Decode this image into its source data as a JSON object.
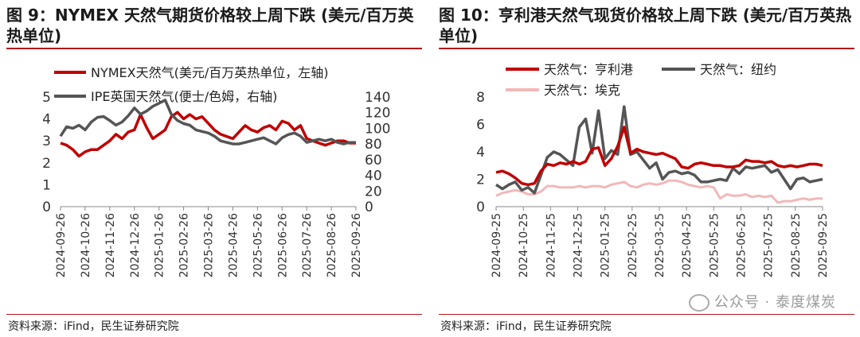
{
  "source_text": "资料来源：iFind，民生证券研究院",
  "watermark": "公众号 · 泰度煤炭",
  "colors": {
    "red": "#c00000",
    "grey": "#555555",
    "pink": "#f2b8b8",
    "accent": "#b4141b"
  },
  "chart_data": [
    {
      "type": "line",
      "title": "图 9：NYMEX 天然气期货价格较上周下跌 (美元/百万英热单位)",
      "x_ticks": [
        "2024-09-26",
        "2024-10-26",
        "2024-11-26",
        "2024-12-26",
        "2025-01-26",
        "2025-02-26",
        "2025-03-26",
        "2025-04-26",
        "2025-05-26",
        "2025-06-26",
        "2025-07-26",
        "2025-08-26",
        "2025-09-26"
      ],
      "ylim_left": [
        0,
        5
      ],
      "yticks_left": [
        "0",
        "1",
        "2",
        "3",
        "4",
        "5"
      ],
      "ylim_right": [
        0,
        140
      ],
      "yticks_right": [
        "0",
        "20",
        "40",
        "60",
        "80",
        "100",
        "120",
        "140"
      ],
      "series": [
        {
          "name": "NYMEX天然气(美元/百万英热单位，左轴)",
          "axis": "left",
          "color": "#c00000",
          "values": [
            2.9,
            2.8,
            2.6,
            2.3,
            2.5,
            2.6,
            2.6,
            2.8,
            3.0,
            3.3,
            3.1,
            3.4,
            3.5,
            4.2,
            3.6,
            3.1,
            3.3,
            3.5,
            4.1,
            4.3,
            4.0,
            4.2,
            4.0,
            4.1,
            3.8,
            3.5,
            3.3,
            3.2,
            3.1,
            3.4,
            3.7,
            3.5,
            3.4,
            3.6,
            3.7,
            3.5,
            3.9,
            3.8,
            3.5,
            3.7,
            3.1,
            3.0,
            2.9,
            2.8,
            2.9,
            3.0,
            3.0,
            2.9,
            2.9
          ]
        },
        {
          "name": "IPE英国天然气(便士/色姆，右轴)",
          "axis": "right",
          "color": "#555555",
          "values": [
            90,
            102,
            100,
            104,
            98,
            108,
            114,
            115,
            110,
            104,
            108,
            116,
            126,
            118,
            122,
            128,
            132,
            136,
            118,
            110,
            106,
            104,
            98,
            96,
            94,
            90,
            84,
            82,
            80,
            80,
            82,
            84,
            86,
            88,
            84,
            80,
            88,
            92,
            94,
            90,
            82,
            84,
            86,
            84,
            86,
            82,
            80,
            82,
            82
          ]
        }
      ]
    },
    {
      "type": "line",
      "title": "图 10：亨利港天然气现货价格较上周下跌 (美元/百万英热单位)",
      "x_ticks": [
        "2024-09-25",
        "2024-10-25",
        "2024-11-25",
        "2024-12-25",
        "2025-01-25",
        "2025-02-25",
        "2025-03-25",
        "2025-04-25",
        "2025-05-25",
        "2025-06-25",
        "2025-07-25",
        "2025-08-25",
        "2025-09-25"
      ],
      "ylim": [
        0,
        8
      ],
      "yticks": [
        "0",
        "2",
        "4",
        "6",
        "8"
      ],
      "series": [
        {
          "name": "天然气：亨利港",
          "color": "#c00000",
          "values": [
            2.5,
            2.6,
            2.4,
            2.1,
            1.7,
            1.6,
            1.7,
            2.6,
            3.1,
            3.0,
            3.2,
            3.1,
            3.3,
            3.1,
            3.3,
            4.2,
            4.3,
            3.0,
            3.5,
            4.4,
            5.8,
            3.9,
            4.2,
            4.0,
            3.9,
            3.8,
            3.9,
            3.7,
            3.5,
            2.9,
            2.8,
            3.1,
            3.2,
            3.1,
            3.0,
            3.0,
            2.9,
            2.9,
            3.0,
            3.4,
            3.3,
            3.3,
            3.2,
            3.3,
            3.0,
            2.9,
            3.0,
            2.9,
            3.0,
            3.1,
            3.1,
            3.0
          ]
        },
        {
          "name": "天然气：纽约",
          "color": "#555555",
          "values": [
            1.6,
            1.3,
            1.6,
            1.8,
            1.2,
            1.4,
            1.0,
            2.3,
            3.6,
            4.0,
            3.8,
            3.4,
            3.0,
            5.8,
            6.4,
            3.9,
            7.0,
            3.5,
            4.1,
            3.8,
            7.3,
            3.8,
            4.0,
            3.4,
            2.8,
            3.2,
            2.0,
            2.5,
            2.6,
            2.4,
            2.5,
            2.3,
            1.8,
            1.8,
            1.9,
            2.0,
            1.9,
            2.8,
            2.4,
            2.9,
            2.8,
            2.9,
            3.0,
            2.5,
            2.7,
            2.0,
            1.3,
            2.0,
            2.1,
            1.8,
            1.9,
            2.0
          ]
        },
        {
          "name": "天然气：埃克",
          "color": "#f2b8b8",
          "values": [
            0.8,
            1.0,
            1.1,
            1.2,
            1.1,
            0.9,
            0.9,
            1.1,
            1.5,
            1.5,
            1.4,
            1.4,
            1.4,
            1.5,
            1.4,
            1.5,
            1.5,
            1.4,
            1.6,
            1.7,
            1.8,
            1.5,
            1.4,
            1.6,
            1.7,
            1.6,
            1.7,
            1.9,
            1.9,
            1.8,
            1.6,
            1.5,
            1.4,
            1.5,
            1.4,
            0.6,
            0.9,
            0.8,
            0.8,
            0.9,
            0.7,
            0.8,
            0.7,
            0.8,
            0.3,
            0.4,
            0.4,
            0.5,
            0.6,
            0.5,
            0.6,
            0.6
          ]
        }
      ]
    }
  ]
}
